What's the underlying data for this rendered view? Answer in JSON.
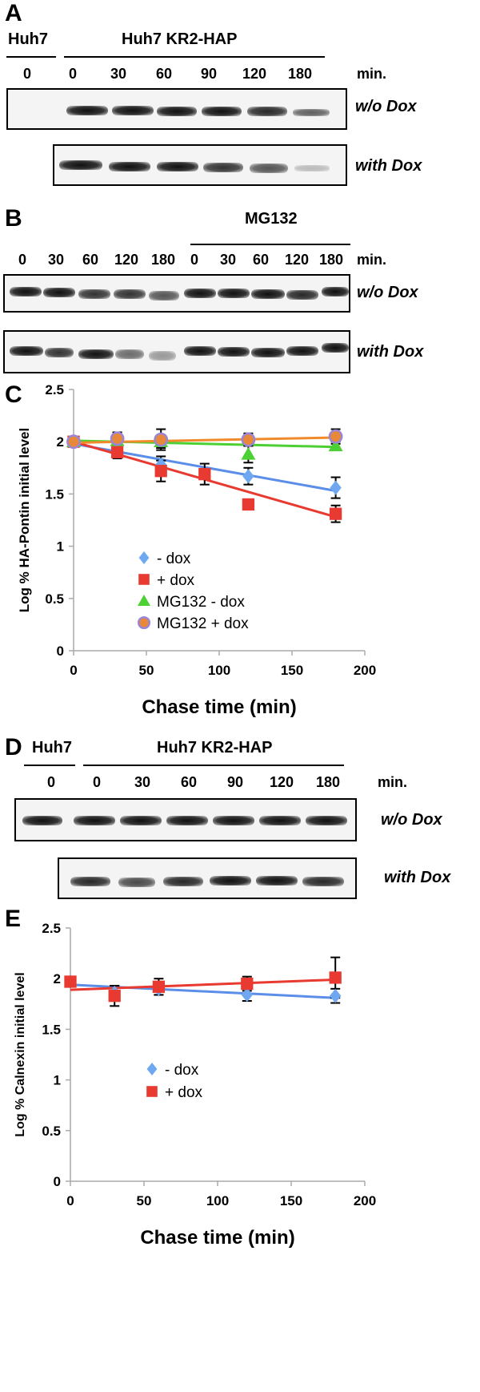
{
  "panels": {
    "A": {
      "letter": "A",
      "group_left": "Huh7",
      "group_right": "Huh7 KR2-HAP",
      "times_left": [
        "0"
      ],
      "times_right": [
        "0",
        "30",
        "60",
        "90",
        "120",
        "180"
      ],
      "unit": "min.",
      "row1": "w/o Dox",
      "row2": "with Dox"
    },
    "B": {
      "letter": "B",
      "group_label": "MG132",
      "times": [
        "0",
        "30",
        "60",
        "120",
        "180",
        "0",
        "30",
        "60",
        "120",
        "180"
      ],
      "unit": "min.",
      "row1": "w/o Dox",
      "row2": "with Dox"
    },
    "C": {
      "letter": "C"
    },
    "D": {
      "letter": "D",
      "group_left": "Huh7",
      "group_right": "Huh7 KR2-HAP",
      "times_left": [
        "0"
      ],
      "times_right": [
        "0",
        "30",
        "60",
        "90",
        "120",
        "180"
      ],
      "unit": "min.",
      "row1": "w/o Dox",
      "row2": "with Dox"
    },
    "E": {
      "letter": "E"
    }
  },
  "chart_data": [
    {
      "type": "scatter",
      "title": "",
      "xlabel": "Chase time (min)",
      "ylabel": "Log % HA-Pontin initial level",
      "xlim": [
        0,
        200
      ],
      "ylim": [
        0,
        2.5
      ],
      "xticks": [
        "0",
        "50",
        "100",
        "150",
        "200"
      ],
      "yticks": [
        "0",
        "0.5",
        "1",
        "1.5",
        "2",
        "2.5"
      ],
      "grid": false,
      "legend": "center-left",
      "series": [
        {
          "name": " - dox",
          "marker": "diamond",
          "color": "#6fa8f0",
          "line_color": "#5b8ee8",
          "x": [
            0,
            30,
            60,
            120,
            180
          ],
          "y": [
            2.0,
            1.93,
            1.78,
            1.67,
            1.56
          ],
          "err": [
            0,
            0.06,
            0.08,
            0.08,
            0.1
          ],
          "trend": [
            [
              0,
              1.98
            ],
            [
              180,
              1.53
            ]
          ]
        },
        {
          "name": "  + dox",
          "marker": "square",
          "color": "#e83a30",
          "line_color": "#e83a30",
          "x": [
            0,
            30,
            60,
            90,
            120,
            180
          ],
          "y": [
            2.0,
            1.9,
            1.72,
            1.69,
            1.4,
            1.31
          ],
          "err": [
            0,
            0.06,
            0.1,
            0.1,
            0,
            0.08
          ],
          "trend": [
            [
              0,
              2.0
            ],
            [
              180,
              1.28
            ]
          ]
        },
        {
          "name": "MG132 - dox",
          "marker": "triangle",
          "color": "#4cd033",
          "line_color": "#4cd033",
          "x": [
            0,
            30,
            60,
            120,
            180
          ],
          "y": [
            2.0,
            2.01,
            2.0,
            1.88,
            1.96
          ],
          "err": [
            0,
            0.05,
            0.06,
            0.08,
            0.04
          ],
          "trend": [
            [
              0,
              2.01
            ],
            [
              180,
              1.95
            ]
          ]
        },
        {
          "name": "MG132 + dox",
          "marker": "circle",
          "color": "#e8883a",
          "edge": "#9a86d6",
          "line_color": "#f08a2a",
          "x": [
            0,
            30,
            60,
            120,
            180
          ],
          "y": [
            2.0,
            2.03,
            2.02,
            2.02,
            2.05
          ],
          "err": [
            0,
            0.06,
            0.1,
            0.06,
            0.07
          ],
          "trend": [
            [
              0,
              1.99
            ],
            [
              180,
              2.04
            ]
          ]
        }
      ]
    },
    {
      "type": "scatter",
      "title": "",
      "xlabel": "Chase time (min)",
      "ylabel": "Log % Calnexin initial level",
      "xlim": [
        0,
        200
      ],
      "ylim": [
        0,
        2.5
      ],
      "xticks": [
        "0",
        "50",
        "100",
        "150",
        "200"
      ],
      "yticks": [
        "0",
        "0.5",
        "1",
        "1.5",
        "2",
        "2.5"
      ],
      "grid": false,
      "legend": "center-left",
      "series": [
        {
          "name": " - dox",
          "marker": "diamond",
          "color": "#6fa8f0",
          "line_color": "#5b8ee8",
          "x": [
            0,
            30,
            60,
            120,
            180
          ],
          "y": [
            1.97,
            1.86,
            1.9,
            1.84,
            1.83
          ],
          "err": [
            0,
            0.07,
            0.06,
            0.06,
            0.07
          ],
          "trend": [
            [
              0,
              1.94
            ],
            [
              180,
              1.81
            ]
          ]
        },
        {
          "name": "  +  dox",
          "marker": "square",
          "color": "#e83a30",
          "line_color": "#e83a30",
          "x": [
            0,
            30,
            60,
            120,
            180
          ],
          "y": [
            1.97,
            1.83,
            1.92,
            1.95,
            2.01
          ],
          "err": [
            0,
            0.1,
            0.08,
            0.07,
            0.2
          ],
          "trend": [
            [
              0,
              1.89
            ],
            [
              180,
              1.99
            ]
          ]
        }
      ]
    }
  ]
}
